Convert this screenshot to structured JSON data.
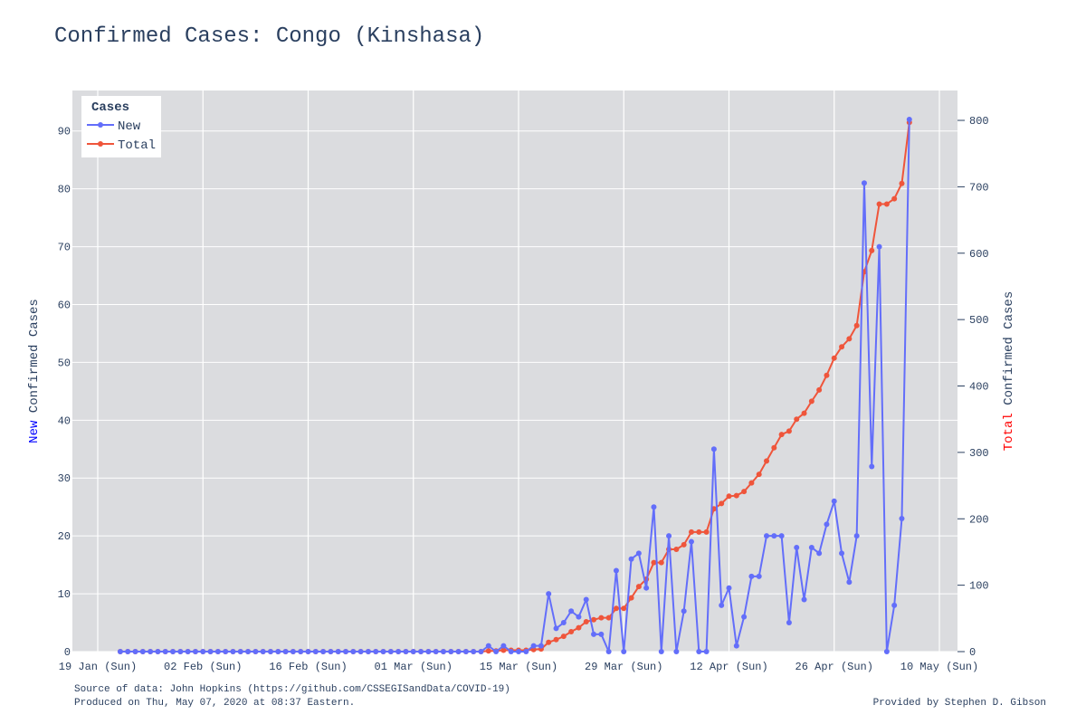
{
  "chart_data": {
    "type": "line",
    "title": "Confirmed Cases: Congo (Kinshasa)",
    "xlabel": "",
    "ylabel_left": {
      "highlight": "New",
      "rest": " Confirmed Cases",
      "highlight_color": "#0000ff"
    },
    "ylabel_right": {
      "highlight": "Total",
      "rest": " Confirmed Cases",
      "highlight_color": "#ff0000"
    },
    "x_start": "2020-01-22",
    "x_tick_labels": [
      "19 Jan (Sun)",
      "02 Feb (Sun)",
      "16 Feb (Sun)",
      "01 Mar (Sun)",
      "15 Mar (Sun)",
      "29 Mar (Sun)",
      "12 Apr (Sun)",
      "26 Apr (Sun)",
      "10 May (Sun)"
    ],
    "x_tick_dates": [
      "2020-01-19",
      "2020-02-02",
      "2020-02-16",
      "2020-03-01",
      "2020-03-15",
      "2020-03-29",
      "2020-04-12",
      "2020-04-26",
      "2020-05-10"
    ],
    "xlim": [
      "2020-01-19",
      "2020-05-10"
    ],
    "ylim_left": [
      0,
      97
    ],
    "ylim_right": [
      0,
      845
    ],
    "y_left_ticks": [
      0,
      10,
      20,
      30,
      40,
      50,
      60,
      70,
      80,
      90
    ],
    "y_right_ticks": [
      0,
      100,
      200,
      300,
      400,
      500,
      600,
      700,
      800
    ],
    "legend": {
      "title": "Cases",
      "position": "top-left"
    },
    "grid": true,
    "background": "#dbdcdf",
    "series": [
      {
        "name": "New",
        "color": "#636efa",
        "axis": "left",
        "values": [
          0,
          0,
          0,
          0,
          0,
          0,
          0,
          0,
          0,
          0,
          0,
          0,
          0,
          0,
          0,
          0,
          0,
          0,
          0,
          0,
          0,
          0,
          0,
          0,
          0,
          0,
          0,
          0,
          0,
          0,
          0,
          0,
          0,
          0,
          0,
          0,
          0,
          0,
          0,
          0,
          0,
          0,
          0,
          0,
          0,
          0,
          0,
          0,
          0,
          1,
          0,
          1,
          0,
          0,
          0,
          1,
          1,
          10,
          4,
          5,
          7,
          6,
          9,
          3,
          3,
          0,
          14,
          0,
          16,
          17,
          11,
          25,
          0,
          20,
          0,
          7,
          19,
          0,
          0,
          35,
          8,
          11,
          1,
          6,
          13,
          13,
          20,
          20,
          20,
          5,
          18,
          9,
          18,
          17,
          22,
          26,
          17,
          12,
          20,
          81,
          32,
          70,
          0,
          8,
          23,
          92
        ]
      },
      {
        "name": "Total",
        "color": "#ef553b",
        "axis": "right",
        "values": [
          0,
          0,
          0,
          0,
          0,
          0,
          0,
          0,
          0,
          0,
          0,
          0,
          0,
          0,
          0,
          0,
          0,
          0,
          0,
          0,
          0,
          0,
          0,
          0,
          0,
          0,
          0,
          0,
          0,
          0,
          0,
          0,
          0,
          0,
          0,
          0,
          0,
          0,
          0,
          0,
          0,
          0,
          0,
          0,
          0,
          0,
          0,
          0,
          0,
          1,
          1,
          2,
          2,
          2,
          2,
          3,
          4,
          14,
          18,
          23,
          30,
          36,
          45,
          48,
          51,
          51,
          65,
          65,
          81,
          98,
          109,
          134,
          134,
          154,
          154,
          161,
          180,
          180,
          180,
          215,
          223,
          234,
          235,
          241,
          254,
          267,
          287,
          307,
          327,
          332,
          350,
          359,
          377,
          394,
          416,
          442,
          459,
          471,
          491,
          572,
          604,
          674,
          674,
          682,
          705,
          797
        ]
      }
    ]
  },
  "footer": {
    "source": "Source of data: John Hopkins (https://github.com/CSSEGISandData/COVID-19)",
    "produced": "Produced on Thu, May 07, 2020 at 08:37 Eastern.",
    "credit": "Provided by Stephen D. Gibson"
  }
}
